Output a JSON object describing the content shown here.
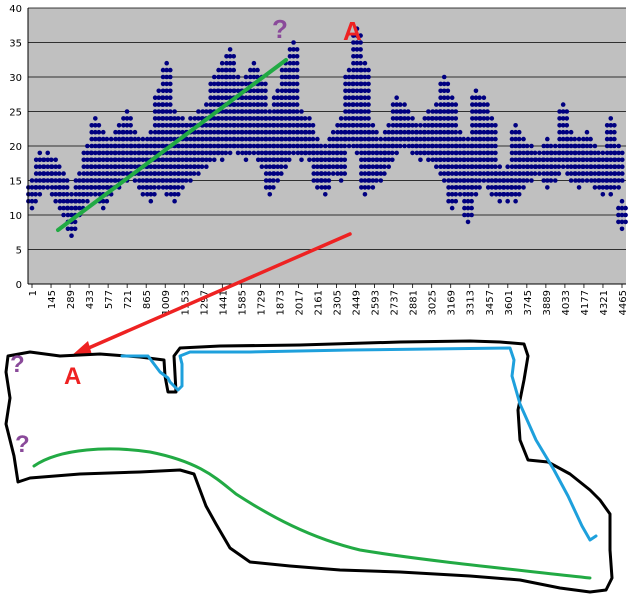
{
  "chart_data": {
    "type": "scatter",
    "title": "",
    "xlabel": "",
    "ylabel": "",
    "ylim": [
      0,
      40
    ],
    "y_ticks": [
      0,
      5,
      10,
      15,
      20,
      25,
      30,
      35,
      40
    ],
    "xlim": [
      1,
      4465
    ],
    "x_tick_labels": [
      "1",
      "145",
      "289",
      "433",
      "577",
      "721",
      "865",
      "1009",
      "1153",
      "1297",
      "1441",
      "1585",
      "1729",
      "1873",
      "2017",
      "2161",
      "2305",
      "2449",
      "2593",
      "2737",
      "2881",
      "3025",
      "3169",
      "3313",
      "3457",
      "3601",
      "3745",
      "3889",
      "4033",
      "4177",
      "4321",
      "4465"
    ],
    "grid": true,
    "marker_color": "#000080",
    "plot_background": "#c0c0c0",
    "series": [
      {
        "x": [
          1,
          60,
          120,
          180,
          240,
          300,
          360,
          420,
          480,
          540,
          600,
          660,
          720,
          780,
          840,
          900,
          960,
          1020,
          1080,
          1140,
          1200,
          1260,
          1320,
          1380,
          1440,
          1500,
          1560,
          1620,
          1680,
          1740,
          1800,
          1860,
          1920,
          1980,
          2040,
          2100,
          2160,
          2220,
          2280,
          2340,
          2400,
          2460,
          2520,
          2580,
          2640,
          2700,
          2760,
          2820,
          2880,
          2940,
          3000,
          3060,
          3120,
          3180,
          3240,
          3300,
          3360,
          3420,
          3480,
          3540,
          3600,
          3660,
          3720,
          3780,
          3840,
          3900,
          3960,
          4020,
          4080,
          4140,
          4200,
          4260,
          4320,
          4380,
          4440,
          4465
        ],
        "low": [
          11,
          13,
          14,
          12,
          10,
          7,
          10,
          12,
          13,
          11,
          13,
          14,
          15,
          15,
          13,
          12,
          14,
          13,
          12,
          14,
          15,
          16,
          17,
          18,
          18,
          19,
          19,
          18,
          19,
          17,
          13,
          15,
          17,
          19,
          18,
          18,
          14,
          13,
          16,
          15,
          20,
          19,
          13,
          14,
          15,
          17,
          19,
          20,
          19,
          18,
          18,
          17,
          15,
          11,
          13,
          9,
          13,
          15,
          13,
          12,
          12,
          12,
          14,
          15,
          16,
          14,
          15,
          17,
          15,
          14,
          15,
          14,
          13,
          13,
          14,
          8
        ],
        "high": [
          15,
          19,
          19,
          18,
          16,
          13,
          16,
          20,
          24,
          22,
          21,
          23,
          25,
          22,
          21,
          22,
          28,
          32,
          25,
          24,
          24,
          25,
          26,
          30,
          32,
          34,
          30,
          30,
          32,
          30,
          25,
          28,
          32,
          35,
          25,
          24,
          21,
          20,
          22,
          24,
          31,
          37,
          32,
          23,
          21,
          23,
          27,
          26,
          24,
          23,
          25,
          26,
          30,
          27,
          22,
          21,
          28,
          27,
          24,
          17,
          17,
          23,
          21,
          20,
          19,
          21,
          20,
          26,
          22,
          21,
          22,
          20,
          19,
          24,
          20,
          12
        ]
      }
    ],
    "trend_line_label": "?",
    "peak_label": "A"
  },
  "map": {
    "start_label_top": "?",
    "start_label_bottom": "?",
    "point_label": "A"
  },
  "colors": {
    "green_line": "#22aa44",
    "red_arrow": "#ee2222",
    "blue_path": "#1ea0dc",
    "label_purple": "#8a4a9a",
    "label_red": "#ee2222"
  }
}
